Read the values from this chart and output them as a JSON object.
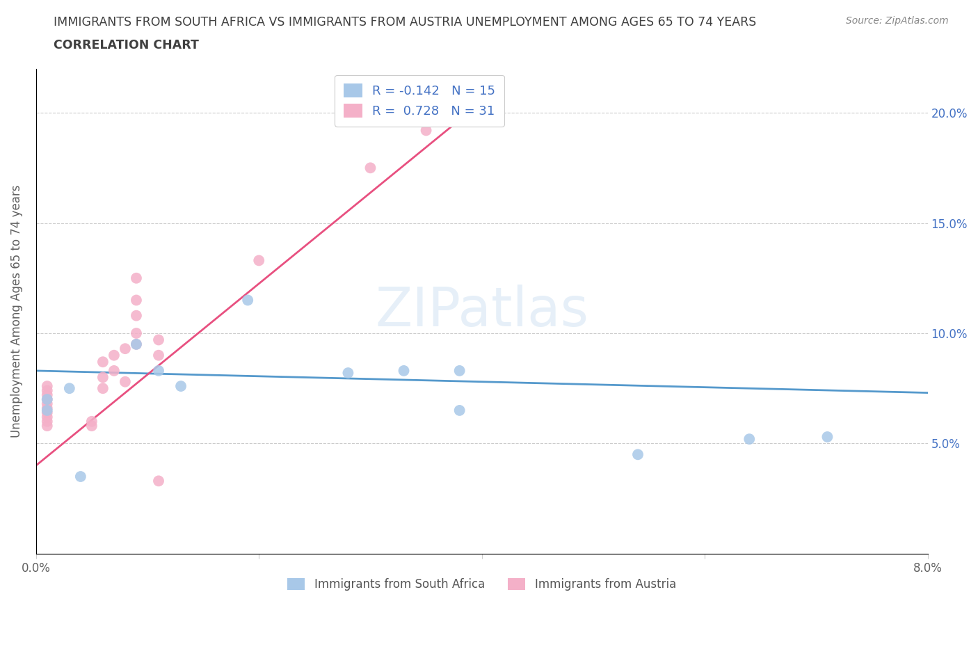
{
  "title_line1": "IMMIGRANTS FROM SOUTH AFRICA VS IMMIGRANTS FROM AUSTRIA UNEMPLOYMENT AMONG AGES 65 TO 74 YEARS",
  "title_line2": "CORRELATION CHART",
  "source": "Source: ZipAtlas.com",
  "ylabel": "Unemployment Among Ages 65 to 74 years",
  "xlim": [
    0.0,
    0.08
  ],
  "ylim": [
    0.0,
    0.22
  ],
  "south_africa_x": [
    0.001,
    0.001,
    0.003,
    0.004,
    0.009,
    0.011,
    0.013,
    0.019,
    0.028,
    0.033,
    0.038,
    0.038,
    0.054,
    0.064,
    0.071
  ],
  "south_africa_y": [
    0.065,
    0.07,
    0.075,
    0.035,
    0.095,
    0.083,
    0.076,
    0.115,
    0.082,
    0.083,
    0.065,
    0.083,
    0.045,
    0.052,
    0.053
  ],
  "austria_x": [
    0.001,
    0.001,
    0.001,
    0.001,
    0.001,
    0.001,
    0.001,
    0.001,
    0.001,
    0.001,
    0.005,
    0.005,
    0.006,
    0.006,
    0.006,
    0.007,
    0.007,
    0.008,
    0.008,
    0.009,
    0.009,
    0.009,
    0.009,
    0.009,
    0.011,
    0.011,
    0.011,
    0.02,
    0.03,
    0.035,
    0.036
  ],
  "austria_y": [
    0.058,
    0.06,
    0.062,
    0.064,
    0.066,
    0.068,
    0.07,
    0.072,
    0.074,
    0.076,
    0.058,
    0.06,
    0.075,
    0.08,
    0.087,
    0.083,
    0.09,
    0.078,
    0.093,
    0.095,
    0.1,
    0.108,
    0.115,
    0.125,
    0.09,
    0.097,
    0.033,
    0.133,
    0.175,
    0.192,
    0.2
  ],
  "R_south_africa": -0.142,
  "N_south_africa": 15,
  "R_austria": 0.728,
  "N_austria": 31,
  "color_south_africa": "#a8c8e8",
  "color_austria": "#f4b0c8",
  "line_color_south_africa": "#5599cc",
  "line_color_austria": "#e85080",
  "watermark": "ZIPatlas",
  "title_color": "#404040",
  "tick_color_right": "#4472c4",
  "legend_text_color": "#4472c4"
}
